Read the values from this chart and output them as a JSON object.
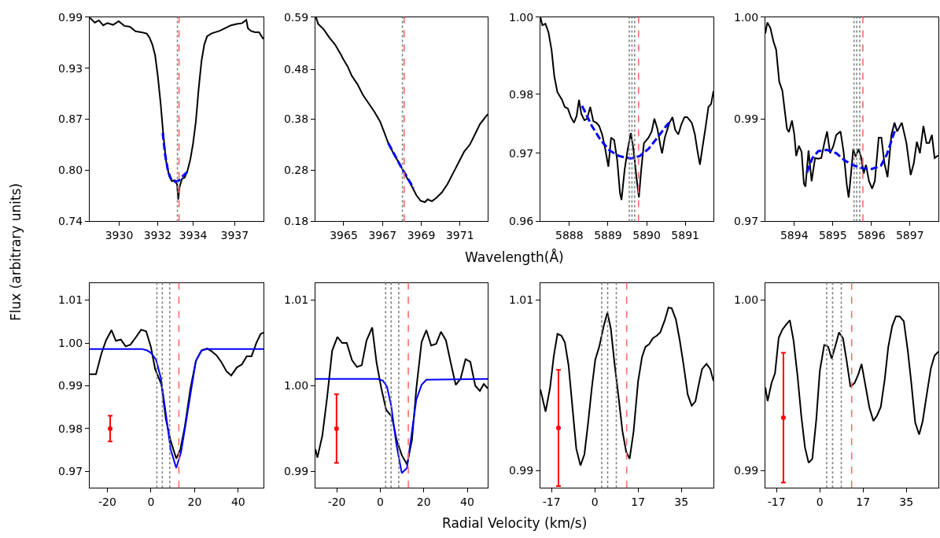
{
  "chart_data": [
    {
      "type": "line",
      "xlim": [
        3928.21,
        3938.75
      ],
      "ylim": [
        0.74,
        0.99
      ],
      "xticks": [
        3930,
        {
          "value": 3932.333,
          "label": "3932"
        },
        {
          "value": 3934.49,
          "label": "3934"
        },
        3937
      ],
      "yticks": [
        0.74,
        {
          "value": 0.8025,
          "label": "0.80"
        },
        {
          "value": 0.865,
          "label": "0.87"
        },
        {
          "value": 0.9275,
          "label": "0.93"
        },
        0.99
      ],
      "ylabel": "Flux (arbitrary units)",
      "series": [
        {
          "color": "#000000",
          "x": [
            3928.21,
            3928.52,
            3928.77,
            3929.03,
            3929.28,
            3929.63,
            3929.97,
            3930.31,
            3930.65,
            3930.99,
            3931.33,
            3931.67,
            3931.84,
            3932.01,
            3932.18,
            3932.35,
            3932.52,
            3932.66,
            3932.83,
            3933.03,
            3933.2,
            3933.37,
            3933.51,
            3933.58,
            3933.66,
            3933.8,
            3933.97,
            3934.14,
            3934.31,
            3934.48,
            3934.65,
            3934.82,
            3934.99,
            3935.16,
            3935.33,
            3935.59,
            3935.84,
            3936.1,
            3936.44,
            3936.78,
            3937.12,
            3937.46,
            3937.71,
            3937.8,
            3937.97,
            3938.23,
            3938.48,
            3938.74
          ],
          "values": [
            0.9893,
            0.9832,
            0.9859,
            0.9799,
            0.9826,
            0.9805,
            0.9849,
            0.9792,
            0.9782,
            0.9725,
            0.9715,
            0.9698,
            0.9648,
            0.9564,
            0.943,
            0.9161,
            0.8826,
            0.849,
            0.8154,
            0.7953,
            0.7893,
            0.7903,
            0.7852,
            0.7668,
            0.7819,
            0.792,
            0.7937,
            0.802,
            0.8154,
            0.8356,
            0.8624,
            0.9027,
            0.9362,
            0.9564,
            0.9665,
            0.9698,
            0.9715,
            0.9732,
            0.9765,
            0.9799,
            0.9815,
            0.9826,
            0.9866,
            0.9765,
            0.9732,
            0.9715,
            0.9715,
            0.9631
          ]
        },
        {
          "color": "#0000ff",
          "line_style": "dashed",
          "x": [
            3932.64,
            3932.78,
            3932.95,
            3933.12,
            3933.29,
            3933.46,
            3933.63,
            3933.88,
            3934.22
          ],
          "values": [
            0.8484,
            0.8222,
            0.8027,
            0.7926,
            0.7886,
            0.7886,
            0.7903,
            0.796,
            0.802
          ]
        }
      ],
      "ref_lines": [
        {
          "axis": "x",
          "value": 3933.53,
          "color": "#808080",
          "line_style": "dotted"
        },
        {
          "axis": "x",
          "value": 3933.63,
          "color": "#ff6b6b",
          "line_style": "dashed"
        }
      ]
    },
    {
      "type": "line",
      "xlim": [
        3963.54,
        3972.43
      ],
      "ylim": [
        0.18,
        0.59
      ],
      "xticks": [
        3965,
        3967,
        3969,
        3971
      ],
      "yticks": [
        0.18,
        {
          "value": 0.2825,
          "label": "0.28"
        },
        {
          "value": 0.385,
          "label": "0.38"
        },
        {
          "value": 0.4849,
          "label": "0.48"
        },
        0.59
      ],
      "xlabel": "Wavelength(Å)",
      "series": [
        {
          "color": "#000000",
          "x": [
            3963.57,
            3963.68,
            3963.97,
            3964.26,
            3964.55,
            3964.84,
            3964.99,
            3965.2,
            3965.42,
            3965.71,
            3966.0,
            3966.29,
            3966.58,
            3966.87,
            3967.09,
            3967.3,
            3967.59,
            3967.88,
            3968.17,
            3968.46,
            3968.75,
            3968.97,
            3969.19,
            3969.33,
            3969.55,
            3969.77,
            3970.06,
            3970.35,
            3970.64,
            3970.93,
            3971.22,
            3971.51,
            3971.62,
            3972.03,
            3972.43
          ],
          "values": [
            0.59,
            0.5762,
            0.5652,
            0.5487,
            0.5349,
            0.5157,
            0.5047,
            0.4909,
            0.4717,
            0.4552,
            0.4331,
            0.4166,
            0.4001,
            0.3809,
            0.3589,
            0.3369,
            0.3149,
            0.2956,
            0.2736,
            0.2544,
            0.2323,
            0.2213,
            0.2186,
            0.2241,
            0.2203,
            0.2268,
            0.2378,
            0.2544,
            0.2764,
            0.2984,
            0.3204,
            0.3341,
            0.3424,
            0.375,
            0.395
          ]
        },
        {
          "color": "#0000ff",
          "line_style": "dashed",
          "x": [
            3967.3,
            3967.95,
            3968.61
          ],
          "values": [
            0.3369,
            0.29,
            0.2461
          ]
        }
      ],
      "ref_lines": [
        {
          "axis": "x",
          "value": 3968.03,
          "color": "#808080",
          "line_style": "dotted"
        },
        {
          "axis": "x",
          "value": 3968.12,
          "color": "#ff6b6b",
          "line_style": "dashed"
        }
      ]
    },
    {
      "type": "line",
      "xlim": [
        5887.25,
        5891.73
      ],
      "ylim": [
        0.96,
        1.0
      ],
      "xticks": [
        5888,
        5889,
        5890,
        5891
      ],
      "yticks": [
        0.96,
        {
          "value": 0.97333,
          "label": "0.97"
        },
        {
          "value": 0.9849,
          "label": "0.98"
        },
        {
          "value": 1.0,
          "label": "1.00"
        }
      ],
      "series": [
        {
          "color": "#000000",
          "x": [
            5887.25,
            5887.3,
            5887.38,
            5887.46,
            5887.54,
            5887.61,
            5887.69,
            5887.81,
            5887.88,
            5887.96,
            5888.04,
            5888.12,
            5888.19,
            5888.25,
            5888.31,
            5888.39,
            5888.46,
            5888.54,
            5888.62,
            5888.7,
            5888.77,
            5888.85,
            5888.93,
            5889.01,
            5889.08,
            5889.16,
            5889.24,
            5889.31,
            5889.35,
            5889.43,
            5889.51,
            5889.59,
            5889.66,
            5889.74,
            5889.8,
            5889.86,
            5889.93,
            5890.05,
            5890.13,
            5890.2,
            5890.28,
            5890.36,
            5890.4,
            5890.47,
            5890.59,
            5890.67,
            5890.74,
            5890.82,
            5890.9,
            5890.98,
            5891.05,
            5891.17,
            5891.25,
            5891.32,
            5891.38,
            5891.44,
            5891.52,
            5891.6,
            5891.67,
            5891.73
          ],
          "values": [
            1.0,
            0.9984,
            0.9987,
            0.997,
            0.9935,
            0.9884,
            0.9853,
            0.9838,
            0.9824,
            0.9821,
            0.9804,
            0.9793,
            0.9807,
            0.9838,
            0.981,
            0.9798,
            0.9801,
            0.9824,
            0.9796,
            0.9793,
            0.9787,
            0.977,
            0.9741,
            0.9707,
            0.9764,
            0.9759,
            0.9719,
            0.9656,
            0.9642,
            0.9701,
            0.9741,
            0.9773,
            0.9741,
            0.9684,
            0.9647,
            0.9701,
            0.9753,
            0.9764,
            0.9776,
            0.9801,
            0.9781,
            0.9747,
            0.9733,
            0.9764,
            0.9793,
            0.9804,
            0.9779,
            0.977,
            0.979,
            0.9804,
            0.9804,
            0.9793,
            0.977,
            0.9736,
            0.9711,
            0.9742,
            0.9781,
            0.9824,
            0.983,
            0.9855
          ]
        },
        {
          "color": "#0000ff",
          "line_style": "dashed",
          "x": [
            5888.33,
            5888.58,
            5888.81,
            5889.04,
            5889.28,
            5889.59,
            5889.82,
            5890.05,
            5890.28,
            5890.51,
            5890.65
          ],
          "values": [
            0.9826,
            0.9787,
            0.9759,
            0.9739,
            0.9728,
            0.9723,
            0.9728,
            0.9742,
            0.9764,
            0.9787,
            0.9799
          ]
        }
      ],
      "ref_lines": [
        {
          "axis": "x",
          "value": 5889.55,
          "color": "#808080",
          "line_style": "dotted"
        },
        {
          "axis": "x",
          "value": 5889.62,
          "color": "#808080",
          "line_style": "dotted"
        },
        {
          "axis": "x",
          "value": 5889.69,
          "color": "#808080",
          "line_style": "dotted"
        },
        {
          "axis": "x",
          "value": 5889.79,
          "color": "#ff6b6b",
          "line_style": "dashed"
        }
      ]
    },
    {
      "type": "line",
      "xlim": [
        5893.25,
        5897.74
      ],
      "ylim": [
        0.97,
        1.0
      ],
      "xticks": [
        5894,
        5895,
        5896,
        5897
      ],
      "yticks": [
        0.97,
        {
          "value": 0.985,
          "label": "0.99"
        },
        {
          "value": 1.0,
          "label": "1.00"
        }
      ],
      "series": [
        {
          "color": "#000000",
          "x": [
            5893.25,
            5893.3,
            5893.38,
            5893.46,
            5893.53,
            5893.61,
            5893.69,
            5893.81,
            5893.86,
            5893.94,
            5894.0,
            5894.05,
            5894.12,
            5894.19,
            5894.25,
            5894.29,
            5894.37,
            5894.45,
            5894.54,
            5894.62,
            5894.7,
            5894.78,
            5894.85,
            5894.93,
            5895.01,
            5895.09,
            5895.2,
            5895.28,
            5895.36,
            5895.41,
            5895.46,
            5895.53,
            5895.59,
            5895.67,
            5895.74,
            5895.8,
            5895.86,
            5895.94,
            5896.02,
            5896.09,
            5896.19,
            5896.26,
            5896.34,
            5896.42,
            5896.52,
            5896.6,
            5896.67,
            5896.79,
            5896.91,
            5897.02,
            5897.1,
            5897.18,
            5897.26,
            5897.35,
            5897.43,
            5897.5,
            5897.57,
            5897.64,
            5897.74
          ],
          "values": [
            0.9976,
            0.9992,
            0.9984,
            0.9964,
            0.9952,
            0.9905,
            0.9892,
            0.9836,
            0.9831,
            0.9848,
            0.9828,
            0.9796,
            0.9811,
            0.9802,
            0.9755,
            0.9751,
            0.9804,
            0.9759,
            0.9793,
            0.9792,
            0.9793,
            0.9815,
            0.9832,
            0.98,
            0.981,
            0.9827,
            0.9832,
            0.9802,
            0.9755,
            0.9735,
            0.9763,
            0.9806,
            0.9795,
            0.9806,
            0.9793,
            0.977,
            0.9783,
            0.9759,
            0.9748,
            0.9759,
            0.9823,
            0.9823,
            0.9785,
            0.9765,
            0.9827,
            0.9845,
            0.9832,
            0.9845,
            0.9815,
            0.9768,
            0.9785,
            0.9817,
            0.98,
            0.984,
            0.9815,
            0.9815,
            0.9827,
            0.9793,
            0.9797
          ]
        },
        {
          "color": "#0000ff",
          "line_style": "dashed",
          "x": [
            5894.33,
            5894.47,
            5894.62,
            5894.85,
            5895.09,
            5895.32,
            5895.55,
            5895.78,
            5896.02,
            5896.25,
            5896.4,
            5896.56,
            5896.64
          ],
          "values": [
            0.9772,
            0.9793,
            0.9803,
            0.9805,
            0.98,
            0.9789,
            0.9782,
            0.9778,
            0.9777,
            0.9782,
            0.9798,
            0.9825,
            0.9838
          ]
        }
      ],
      "ref_lines": [
        {
          "axis": "x",
          "value": 5895.55,
          "color": "#808080",
          "line_style": "dotted"
        },
        {
          "axis": "x",
          "value": 5895.62,
          "color": "#808080",
          "line_style": "dotted"
        },
        {
          "axis": "x",
          "value": 5895.7,
          "color": "#808080",
          "line_style": "dotted"
        },
        {
          "axis": "x",
          "value": 5895.78,
          "color": "#ff6b6b",
          "line_style": "dashed"
        }
      ]
    },
    {
      "type": "line",
      "xlim": [
        -28.1,
        51.6
      ],
      "ylim": [
        0.96615,
        1.01404
      ],
      "xticks": [
        -20,
        0,
        20,
        40
      ],
      "yticks": [
        0.97,
        0.98,
        0.99,
        {
          "value": 1.0,
          "label": "1.00"
        },
        1.01
      ],
      "series": [
        {
          "color": "#000000",
          "x": [
            -28.1,
            -25.2,
            -22.8,
            -20.6,
            -18.1,
            -16.1,
            -13.8,
            -11.6,
            -9.4,
            -7.1,
            -4.5,
            -2.2,
            0.0,
            1.9,
            4.8,
            6.8,
            9.0,
            11.6,
            13.5,
            15.5,
            18.1,
            20.6,
            23.2,
            25.8,
            27.7,
            30.1,
            32.3,
            34.6,
            36.8,
            39.4,
            41.7,
            43.9,
            46.1,
            48.4,
            50.3,
            51.6
          ],
          "values": [
            0.9927,
            0.9927,
            0.9974,
            1.0006,
            1.003,
            1.0005,
            1.0008,
            0.9992,
            0.9996,
            1.0012,
            1.0031,
            1.0027,
            0.999,
            0.9939,
            0.9903,
            0.9823,
            0.9772,
            0.973,
            0.9752,
            0.9804,
            0.9894,
            0.9958,
            0.9983,
            0.9987,
            0.9981,
            0.9971,
            0.9955,
            0.9934,
            0.9924,
            0.9943,
            0.995,
            0.9969,
            0.9969,
            1.0001,
            1.0021,
            1.0024
          ]
        },
        {
          "color": "#0000ff",
          "x": [
            -28.1,
            -4.5,
            -1.9,
            0.0,
            2.3,
            4.5,
            6.8,
            9.0,
            11.6,
            13.8,
            15.9,
            18.1,
            20.6,
            23.2,
            25.8,
            51.6
          ],
          "values": [
            0.9986,
            0.9986,
            0.9983,
            0.9977,
            0.9961,
            0.9919,
            0.9836,
            0.9752,
            0.9708,
            0.9745,
            0.981,
            0.988,
            0.9958,
            0.9982,
            0.9986,
            0.9986
          ]
        },
        {
          "type": "scatter",
          "marker": "none",
          "color": "#ff0000",
          "x": [
            -18.7
          ],
          "values": [
            0.98
          ],
          "errors": [
            [
              0.977,
              0.983
            ]
          ]
        }
      ],
      "ref_lines": [
        {
          "axis": "x",
          "value": 2.7,
          "color": "#808080",
          "line_style": "dotted"
        },
        {
          "axis": "x",
          "value": 5.2,
          "color": "#808080",
          "line_style": "dotted"
        },
        {
          "axis": "x",
          "value": 8.6,
          "color": "#808080",
          "line_style": "dotted"
        },
        {
          "axis": "x",
          "value": 12.8,
          "color": "#ff6b6b",
          "line_style": "dashed"
        }
      ]
    },
    {
      "type": "line",
      "xlim": [
        -29.8,
        49.4
      ],
      "ylim": [
        0.98807,
        1.01202
      ],
      "xticks": [
        -20,
        0,
        20,
        40
      ],
      "yticks": [
        0.99,
        {
          "value": 1.0,
          "label": "1.00"
        },
        1.01
      ],
      "xlabel": "Radial Velocity (km/s)",
      "series": [
        {
          "color": "#000000",
          "x": [
            -29.8,
            -28.9,
            -26.6,
            -24.4,
            -22.1,
            -19.7,
            -17.5,
            -15.4,
            -13.0,
            -10.7,
            -8.5,
            -6.3,
            -3.7,
            -1.7,
            0.5,
            2.7,
            5.3,
            7.6,
            9.9,
            12.3,
            14.6,
            16.6,
            19.0,
            21.2,
            23.4,
            25.7,
            27.9,
            30.2,
            32.4,
            34.7,
            36.9,
            39.2,
            41.4,
            43.7,
            45.8,
            47.6,
            49.4
          ],
          "values": [
            0.9926,
            0.9916,
            0.9942,
            0.9987,
            1.0041,
            1.0057,
            1.005,
            1.005,
            1.003,
            1.0022,
            1.0024,
            1.0053,
            1.0068,
            1.0027,
            0.9997,
            0.9972,
            0.9964,
            0.9936,
            0.9919,
            0.9908,
            0.9937,
            0.9997,
            1.0051,
            1.0065,
            1.0047,
            1.0049,
            1.0063,
            1.0053,
            1.0027,
            1.0001,
            1.0008,
            1.0031,
            1.0028,
            1.0,
            0.9994,
            1.0002,
            0.9997
          ]
        },
        {
          "color": "#0000ff",
          "x": [
            -29.8,
            -1.4,
            1.2,
            3.1,
            5.0,
            7.4,
            9.9,
            12.3,
            14.7,
            16.6,
            19.0,
            21.2,
            49.4
          ],
          "values": [
            1.0008,
            1.0008,
            1.0006,
            0.9999,
            0.9977,
            0.9932,
            0.9898,
            0.9904,
            0.9949,
            0.9984,
            1.0001,
            1.0007,
            1.0008
          ]
        },
        {
          "type": "scatter",
          "marker": "none",
          "color": "#ff0000",
          "x": [
            -20.1
          ],
          "values": [
            0.995
          ],
          "errors": [
            [
              0.991,
              0.999
            ]
          ]
        }
      ],
      "ref_lines": [
        {
          "axis": "x",
          "value": 2.5,
          "color": "#808080",
          "line_style": "dotted"
        },
        {
          "axis": "x",
          "value": 5.0,
          "color": "#808080",
          "line_style": "dotted"
        },
        {
          "axis": "x",
          "value": 8.5,
          "color": "#808080",
          "line_style": "dotted"
        },
        {
          "axis": "x",
          "value": 12.9,
          "color": "#ff6b6b",
          "line_style": "dashed"
        }
      ]
    },
    {
      "type": "line",
      "xlim": [
        -22.0,
        48.0
      ],
      "ylim": [
        0.98798,
        1.01198
      ],
      "xticks": [
        {
          "value": -17.5,
          "label": "-17"
        },
        0,
        {
          "value": 17.5,
          "label": "17"
        },
        35
      ],
      "yticks": [
        0.99,
        1.01
      ],
      "series": [
        {
          "color": "#000000",
          "x": [
            -22.0,
            -19.9,
            -18.1,
            -16.6,
            -15.1,
            -13.5,
            -12.1,
            -10.6,
            -9.0,
            -7.5,
            -5.8,
            -4.2,
            -2.7,
            -1.2,
            0.2,
            1.8,
            3.6,
            5.1,
            6.5,
            8.0,
            9.7,
            11.2,
            12.7,
            14.1,
            15.7,
            17.5,
            19.1,
            20.5,
            22.0,
            23.5,
            25.1,
            26.5,
            28.3,
            29.8,
            31.1,
            32.8,
            34.4,
            35.9,
            37.6,
            39.2,
            40.7,
            42.0,
            43.4,
            45.2,
            46.7,
            48.0
          ],
          "values": [
            0.9995,
            0.9969,
            0.9997,
            1.0034,
            1.006,
            1.0058,
            1.005,
            1.0023,
            0.9973,
            0.9926,
            0.9906,
            0.9919,
            0.9956,
            0.9997,
            1.003,
            1.0045,
            1.0069,
            1.0085,
            1.0066,
            1.0025,
            0.9984,
            0.9946,
            0.9922,
            0.9914,
            0.9946,
            1.0004,
            1.0033,
            1.0045,
            1.0048,
            1.0055,
            1.0058,
            1.0062,
            1.0076,
            1.0091,
            1.009,
            1.0077,
            1.0052,
            1.0024,
            0.9989,
            0.9976,
            0.9981,
            1.0,
            1.0019,
            1.0025,
            1.0019,
            1.0005
          ]
        },
        {
          "type": "scatter",
          "marker": "none",
          "color": "#ff0000",
          "x": [
            -14.7
          ],
          "values": [
            0.995
          ],
          "errors": [
            [
              0.9882,
              1.0018
            ]
          ]
        }
      ],
      "ref_lines": [
        {
          "axis": "x",
          "value": 2.8,
          "color": "#808080",
          "line_style": "dotted"
        },
        {
          "axis": "x",
          "value": 5.2,
          "color": "#808080",
          "line_style": "dotted"
        },
        {
          "axis": "x",
          "value": 8.7,
          "color": "#808080",
          "line_style": "dotted"
        },
        {
          "axis": "x",
          "value": 12.9,
          "color": "#ff6b6b",
          "line_style": "dashed"
        }
      ]
    },
    {
      "type": "line",
      "xlim": [
        -22.0,
        48.0
      ],
      "ylim": [
        0.98899,
        1.00099
      ],
      "xticks": [
        {
          "value": -17.5,
          "label": "-17"
        },
        0,
        {
          "value": 17.5,
          "label": "17"
        },
        35
      ],
      "yticks": [
        0.99,
        {
          "value": 1.0,
          "label": "1.00"
        }
      ],
      "series": [
        {
          "color": "#000000",
          "x": [
            -22.0,
            -21.1,
            -19.5,
            -18.1,
            -16.6,
            -15.1,
            -13.6,
            -12.1,
            -10.6,
            -9.0,
            -7.5,
            -6.0,
            -4.5,
            -3.0,
            -1.4,
            0.0,
            1.8,
            3.4,
            4.8,
            6.4,
            7.8,
            9.4,
            10.9,
            12.4,
            14.1,
            15.6,
            16.9,
            18.5,
            20.1,
            21.7,
            23.2,
            24.7,
            26.3,
            27.7,
            29.3,
            30.8,
            32.3,
            34.0,
            35.6,
            37.0,
            38.6,
            40.2,
            41.6,
            43.1,
            44.9,
            46.4,
            48.0
          ],
          "values": [
            0.99487,
            0.99407,
            0.99513,
            0.9957,
            0.99778,
            0.99826,
            0.99855,
            0.9988,
            0.99761,
            0.99556,
            0.99325,
            0.99137,
            0.99046,
            0.99069,
            0.99299,
            0.99581,
            0.99735,
            0.99726,
            0.99655,
            0.99735,
            0.99809,
            0.99774,
            0.99641,
            0.99491,
            0.99513,
            0.99564,
            0.99624,
            0.99496,
            0.99368,
            0.99291,
            0.99323,
            0.99374,
            0.99536,
            0.99723,
            0.99846,
            0.99903,
            0.99903,
            0.99874,
            0.99703,
            0.99518,
            0.99282,
            0.99211,
            0.99287,
            0.99429,
            0.99595,
            0.99672,
            0.99697
          ]
        },
        {
          "type": "scatter",
          "marker": "none",
          "color": "#ff0000",
          "x": [
            -14.7
          ],
          "values": [
            0.9931
          ],
          "errors": [
            [
              0.9893,
              0.9969
            ]
          ]
        }
      ],
      "ref_lines": [
        {
          "axis": "x",
          "value": 2.8,
          "color": "#808080",
          "line_style": "dotted"
        },
        {
          "axis": "x",
          "value": 5.2,
          "color": "#808080",
          "line_style": "dotted"
        },
        {
          "axis": "x",
          "value": 8.7,
          "color": "#808080",
          "line_style": "dotted"
        },
        {
          "axis": "x",
          "value": 12.9,
          "color": "#ff6b6b",
          "line_style": "dashed"
        }
      ]
    }
  ]
}
